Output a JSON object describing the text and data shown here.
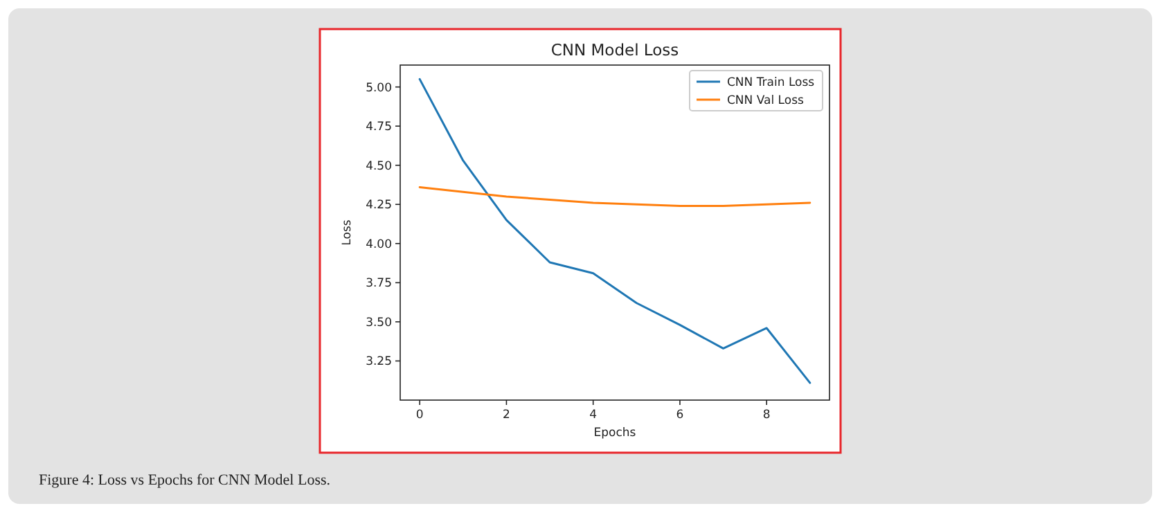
{
  "chart_data": {
    "type": "line",
    "title": "CNN Model Loss",
    "xlabel": "Epochs",
    "ylabel": "Loss",
    "x": [
      0,
      1,
      2,
      3,
      4,
      5,
      6,
      7,
      8,
      9
    ],
    "series": [
      {
        "name": "CNN Train Loss",
        "color": "#1f77b4",
        "values": [
          5.05,
          4.53,
          4.15,
          3.88,
          3.81,
          3.62,
          3.48,
          3.33,
          3.46,
          3.11
        ]
      },
      {
        "name": "CNN Val Loss",
        "color": "#ff7f0e",
        "values": [
          4.36,
          4.33,
          4.3,
          4.28,
          4.26,
          4.25,
          4.24,
          4.24,
          4.25,
          4.26
        ]
      }
    ],
    "xlim": [
      -0.45,
      9.45
    ],
    "ylim": [
      3.0,
      5.14
    ],
    "xticks": [
      0,
      2,
      4,
      6,
      8
    ],
    "yticks": [
      {
        "value": 3.25,
        "label": "3.25"
      },
      {
        "value": 3.5,
        "label": "3.50"
      },
      {
        "value": 3.75,
        "label": "3.75"
      },
      {
        "value": 4,
        "label": "4.00"
      },
      {
        "value": 4.25,
        "label": "4.25"
      },
      {
        "value": 4.5,
        "label": "4.50"
      },
      {
        "value": 4.75,
        "label": "4.75"
      },
      {
        "value": 5,
        "label": "5.00"
      }
    ],
    "legend": "top right",
    "grid": false,
    "marker": "none",
    "line_style": "solid",
    "annotations": [
      "Figure 4: Loss vs Epochs for CNN Model Loss."
    ]
  }
}
